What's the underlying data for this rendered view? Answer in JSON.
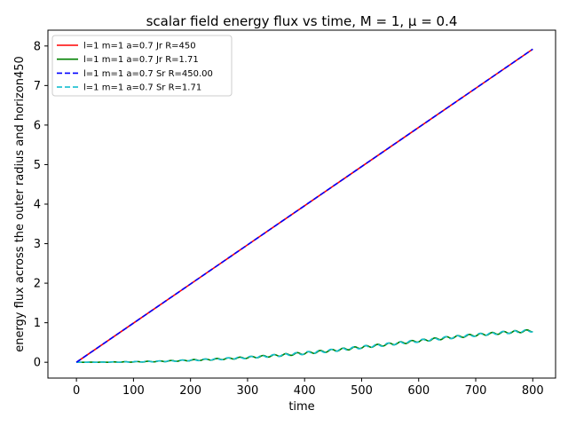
{
  "chart_data": {
    "type": "line",
    "title": "scalar field energy flux vs time, M = 1, μ = 0.4",
    "xlabel": "time",
    "ylabel": "energy flux across the outer radius and horizon450",
    "xlim": [
      -50,
      840
    ],
    "ylim": [
      -0.4,
      8.4
    ],
    "xticks": [
      0,
      100,
      200,
      300,
      400,
      500,
      600,
      700,
      800
    ],
    "yticks": [
      0,
      1,
      2,
      3,
      4,
      5,
      6,
      7,
      8
    ],
    "grid": false,
    "legend_position": "top-left",
    "series": [
      {
        "name": "l=1 m=1 a=0.7 Jr R=450",
        "color": "#ff0000",
        "style": "solid",
        "x": [
          0,
          100,
          200,
          300,
          400,
          500,
          600,
          700,
          800
        ],
        "y": [
          0,
          0.99,
          1.98,
          2.97,
          3.96,
          4.95,
          5.94,
          6.93,
          7.92
        ]
      },
      {
        "name": "l=1 m=1 a=0.7 Jr R=1.71",
        "color": "#008000",
        "style": "solid",
        "oscillation": 0.03,
        "x": [
          0,
          50,
          100,
          150,
          200,
          250,
          300,
          350,
          400,
          450,
          500,
          550,
          600,
          650,
          700,
          750,
          800
        ],
        "y": [
          0,
          0.003,
          0.01,
          0.025,
          0.05,
          0.08,
          0.12,
          0.17,
          0.23,
          0.3,
          0.38,
          0.46,
          0.54,
          0.62,
          0.69,
          0.75,
          0.8
        ]
      },
      {
        "name": "l=1 m=1 a=0.7 Sr R=450.00",
        "color": "#0000ff",
        "style": "dashed",
        "x": [
          0,
          100,
          200,
          300,
          400,
          500,
          600,
          700,
          800
        ],
        "y": [
          0,
          0.99,
          1.98,
          2.97,
          3.96,
          4.95,
          5.94,
          6.93,
          7.92
        ]
      },
      {
        "name": "l=1 m=1 a=0.7 Sr R=1.71",
        "color": "#17becf",
        "style": "dashed",
        "oscillation": 0.03,
        "x": [
          0,
          50,
          100,
          150,
          200,
          250,
          300,
          350,
          400,
          450,
          500,
          550,
          600,
          650,
          700,
          750,
          800
        ],
        "y": [
          0,
          0.003,
          0.01,
          0.025,
          0.05,
          0.08,
          0.12,
          0.17,
          0.23,
          0.3,
          0.38,
          0.46,
          0.54,
          0.62,
          0.69,
          0.75,
          0.8
        ]
      }
    ]
  }
}
